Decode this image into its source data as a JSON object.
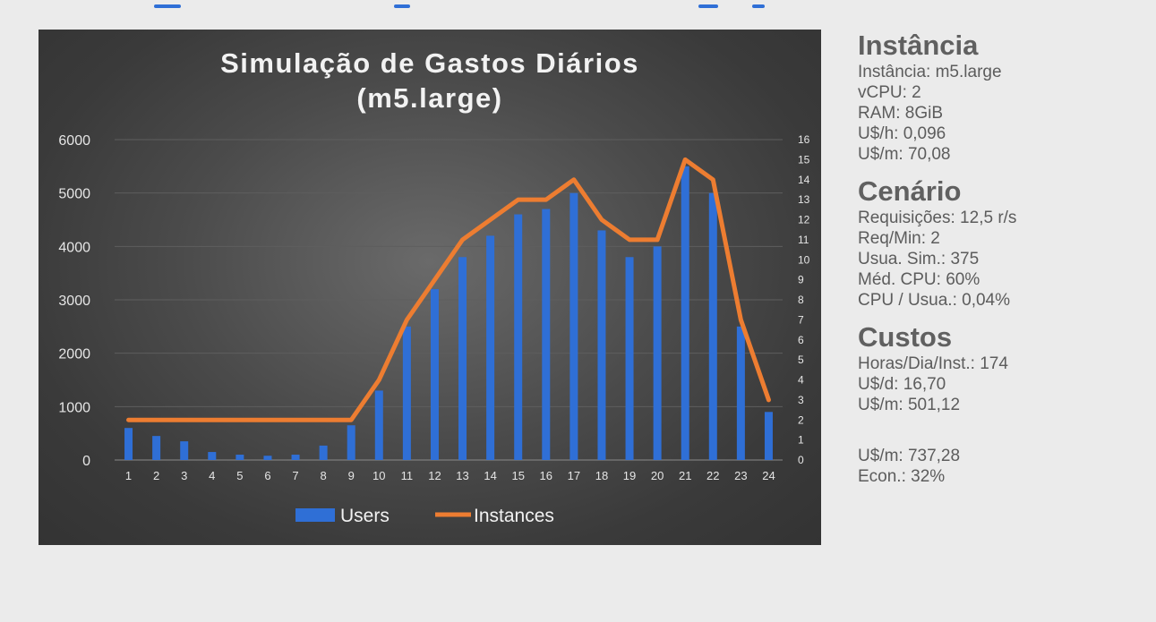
{
  "chart_data": {
    "type": "bar+line",
    "title": "Simulação de Gastos Diários",
    "subtitle": "(m5.large)",
    "categories": [
      "1",
      "2",
      "3",
      "4",
      "5",
      "6",
      "7",
      "8",
      "9",
      "10",
      "11",
      "12",
      "13",
      "14",
      "15",
      "16",
      "17",
      "18",
      "19",
      "20",
      "21",
      "22",
      "23",
      "24"
    ],
    "series": [
      {
        "name": "Users",
        "type": "bar",
        "axis": "left",
        "color": "#2f6fd6",
        "values": [
          600,
          450,
          350,
          150,
          100,
          80,
          100,
          270,
          650,
          1300,
          2500,
          3200,
          3800,
          4200,
          4600,
          4700,
          5000,
          4300,
          3800,
          4000,
          5500,
          5000,
          2500,
          900
        ]
      },
      {
        "name": "Instances",
        "type": "line",
        "axis": "right",
        "color": "#ed7d31",
        "values": [
          2,
          2,
          2,
          2,
          2,
          2,
          2,
          2,
          2,
          4,
          7,
          9,
          11,
          12,
          13,
          13,
          14,
          12,
          11,
          11,
          15,
          14,
          7,
          3
        ]
      }
    ],
    "yleft_ticks": [
      "0",
      "1000",
      "2000",
      "3000",
      "4000",
      "5000",
      "6000"
    ],
    "yleft_lim": [
      0,
      6000
    ],
    "yright_ticks": [
      "0",
      "1",
      "2",
      "3",
      "4",
      "5",
      "6",
      "7",
      "8",
      "9",
      "10",
      "11",
      "12",
      "13",
      "14",
      "15",
      "16"
    ],
    "yright_lim": [
      0,
      16
    ],
    "grid": true,
    "legend_position": "bottom"
  },
  "sidebar": {
    "instancia": {
      "heading": "Instância",
      "lines": [
        "Instância: m5.large",
        "vCPU: 2",
        "RAM: 8GiB",
        "U$/h: 0,096",
        "U$/m: 70,08"
      ]
    },
    "cenario": {
      "heading": "Cenário",
      "lines": [
        "Requisições: 12,5 r/s",
        "Req/Min: 2",
        "Usua. Sim.: 375",
        "Méd. CPU: 60%",
        "CPU / Usua.: 0,04%"
      ]
    },
    "custos": {
      "heading": "Custos",
      "lines": [
        "Horas/Dia/Inst.: 174",
        "U$/d: 16,70",
        "U$/m: 501,12"
      ]
    },
    "comparacao": {
      "lines": [
        "U$/m: 737,28",
        "Econ.: 32%"
      ]
    }
  }
}
